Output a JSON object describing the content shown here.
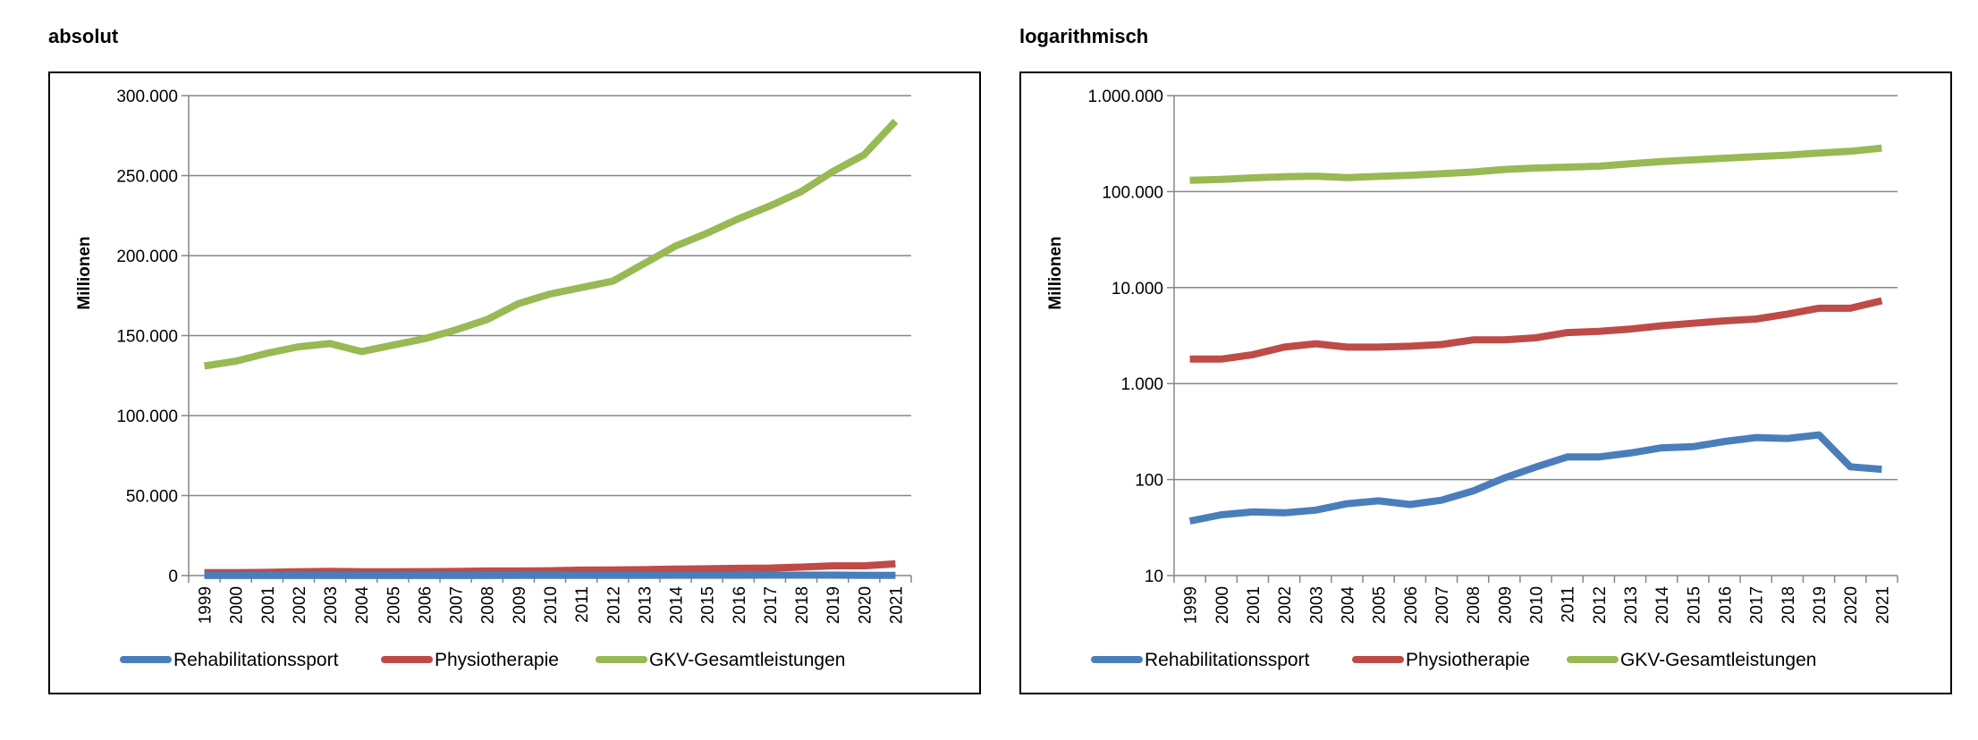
{
  "chart_data": [
    {
      "type": "line",
      "title": "absolut",
      "ylabel": "Millionen",
      "xlabel": "",
      "scale": "linear",
      "ylim": [
        0,
        300000
      ],
      "yticks": [
        0,
        50000,
        100000,
        150000,
        200000,
        250000,
        300000
      ],
      "ytick_labels": [
        "0",
        "50.000",
        "100.000",
        "150.000",
        "200.000",
        "250.000",
        "300.000"
      ],
      "grid": true,
      "legend": "bottom",
      "categories": [
        "1999",
        "2000",
        "2001",
        "2002",
        "2003",
        "2004",
        "2005",
        "2006",
        "2007",
        "2008",
        "2009",
        "2010",
        "2011",
        "2012",
        "2013",
        "2014",
        "2015",
        "2016",
        "2017",
        "2018",
        "2019",
        "2020",
        "2021"
      ],
      "series": [
        {
          "name": "Rehabilitationssport",
          "color": "#4a7ebb",
          "values": [
            37,
            43,
            46,
            45,
            48,
            56,
            60,
            55,
            61,
            76,
            104,
            135,
            172,
            172,
            189,
            214,
            220,
            249,
            274,
            268,
            292,
            136,
            128
          ]
        },
        {
          "name": "Physiotherapie",
          "color": "#be4b48",
          "values": [
            1800,
            1800,
            2000,
            2400,
            2600,
            2400,
            2400,
            2450,
            2550,
            2850,
            2850,
            3000,
            3400,
            3500,
            3700,
            4000,
            4250,
            4500,
            4700,
            5300,
            6100,
            6100,
            7300
          ]
        },
        {
          "name": "GKV-Gesamtleistungen",
          "color": "#98b954",
          "values": [
            131000,
            134000,
            139000,
            143000,
            145000,
            140000,
            144000,
            148000,
            153500,
            160000,
            170000,
            176000,
            180000,
            184000,
            195000,
            206000,
            214000,
            223000,
            231000,
            240000,
            252500,
            263000,
            284000
          ]
        }
      ]
    },
    {
      "type": "line",
      "title": "logarithmisch",
      "ylabel": "Millionen",
      "xlabel": "",
      "scale": "log",
      "ylim": [
        10,
        1000000
      ],
      "yticks": [
        10,
        100,
        1000,
        10000,
        100000,
        1000000
      ],
      "ytick_labels": [
        "10",
        "100",
        "1.000",
        "10.000",
        "100.000",
        "1.000.000"
      ],
      "grid": true,
      "legend": "bottom",
      "categories": [
        "1999",
        "2000",
        "2001",
        "2002",
        "2003",
        "2004",
        "2005",
        "2006",
        "2007",
        "2008",
        "2009",
        "2010",
        "2011",
        "2012",
        "2013",
        "2014",
        "2015",
        "2016",
        "2017",
        "2018",
        "2019",
        "2020",
        "2021"
      ],
      "series": [
        {
          "name": "Rehabilitationssport",
          "color": "#4a7ebb",
          "values": [
            37,
            43,
            46,
            45,
            48,
            56,
            60,
            55,
            61,
            76,
            104,
            135,
            172,
            172,
            189,
            214,
            220,
            249,
            274,
            268,
            292,
            136,
            128
          ]
        },
        {
          "name": "Physiotherapie",
          "color": "#be4b48",
          "values": [
            1800,
            1800,
            2000,
            2400,
            2600,
            2400,
            2400,
            2450,
            2550,
            2850,
            2850,
            3000,
            3400,
            3500,
            3700,
            4000,
            4250,
            4500,
            4700,
            5300,
            6100,
            6100,
            7300
          ]
        },
        {
          "name": "GKV-Gesamtleistungen",
          "color": "#98b954",
          "values": [
            131000,
            134000,
            139000,
            143000,
            145000,
            140000,
            144000,
            148000,
            153500,
            160000,
            170000,
            176000,
            180000,
            184000,
            195000,
            206000,
            214000,
            223000,
            231000,
            240000,
            252500,
            263000,
            284000
          ]
        }
      ]
    }
  ]
}
